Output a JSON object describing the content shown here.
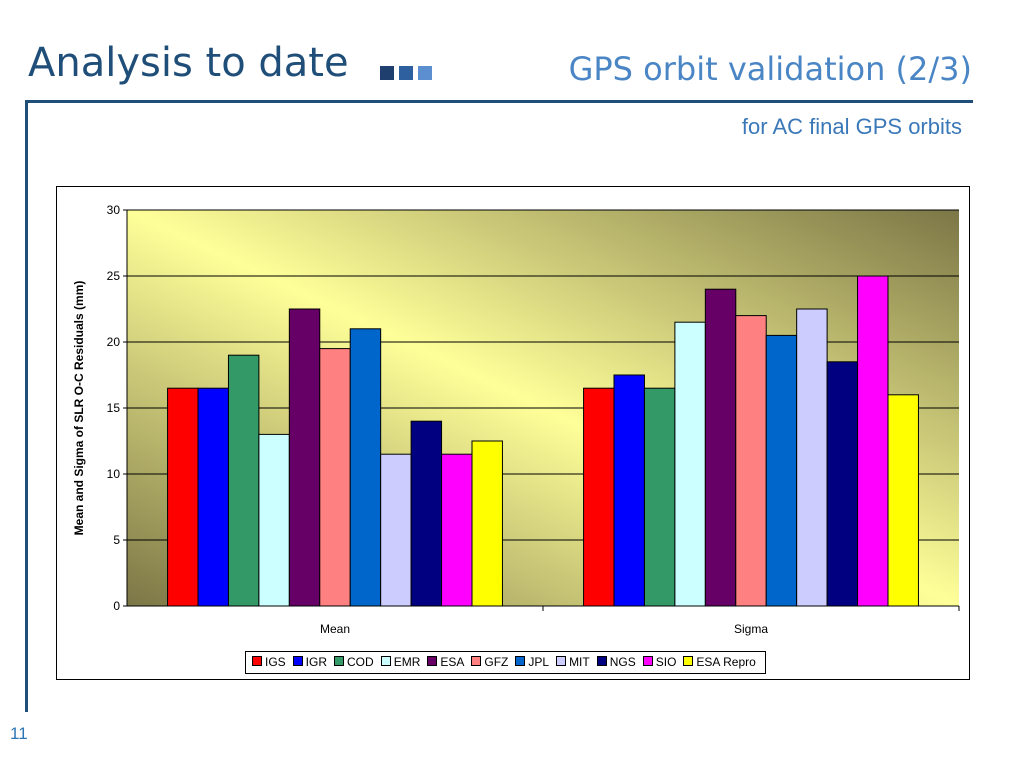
{
  "slide": {
    "title": "Analysis to date",
    "section_title": "GPS orbit validation (2/3)",
    "subtitle": "for AC final GPS orbits",
    "page_number": "11",
    "title_squares": [
      "#1f3f6e",
      "#2e5f9e",
      "#5b8fd0"
    ]
  },
  "chart_data": {
    "type": "bar",
    "title": "",
    "xlabel": "",
    "ylabel": "Mean and Sigma of SLR O-C Residuals (mm)",
    "ylim": [
      0,
      30
    ],
    "yticks": [
      0,
      5,
      10,
      15,
      20,
      25,
      30
    ],
    "grid": true,
    "legend": "bottom",
    "categories": [
      "Mean",
      "Sigma"
    ],
    "series": [
      {
        "name": "IGS",
        "color": "#ff0000",
        "values": [
          16.5,
          16.5
        ]
      },
      {
        "name": "IGR",
        "color": "#0000ff",
        "values": [
          16.5,
          17.5
        ]
      },
      {
        "name": "COD",
        "color": "#339966",
        "values": [
          19,
          16.5
        ]
      },
      {
        "name": "EMR",
        "color": "#ccffff",
        "values": [
          13,
          21.5
        ]
      },
      {
        "name": "ESA",
        "color": "#660066",
        "values": [
          22.5,
          24
        ]
      },
      {
        "name": "GFZ",
        "color": "#ff8080",
        "values": [
          19.5,
          22
        ]
      },
      {
        "name": "JPL",
        "color": "#0066cc",
        "values": [
          21,
          20.5
        ]
      },
      {
        "name": "MIT",
        "color": "#ccccff",
        "values": [
          11.5,
          22.5
        ]
      },
      {
        "name": "NGS",
        "color": "#000080",
        "values": [
          14,
          18.5
        ]
      },
      {
        "name": "SIO",
        "color": "#ff00ff",
        "values": [
          11.5,
          25
        ]
      },
      {
        "name": "ESA Repro",
        "color": "#ffff00",
        "values": [
          12.5,
          16
        ]
      }
    ]
  }
}
